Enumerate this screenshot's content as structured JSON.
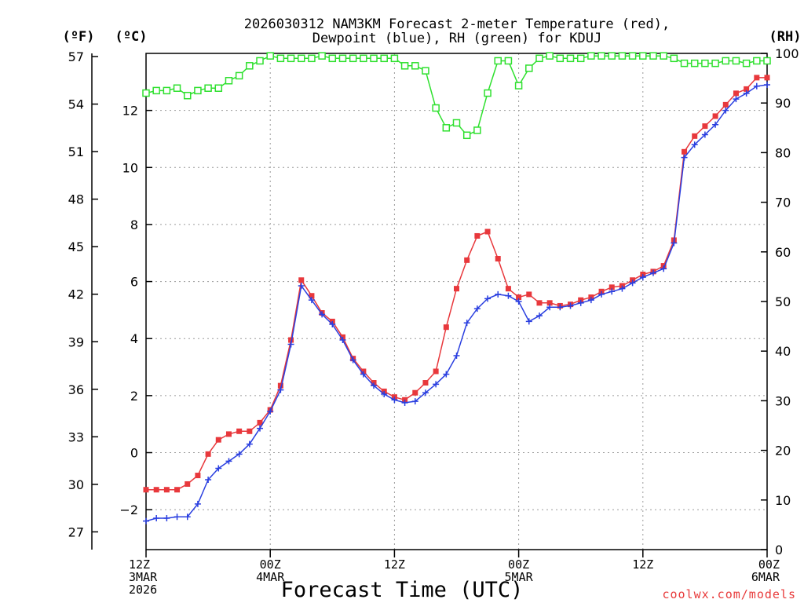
{
  "chart_data": {
    "type": "line",
    "title_line1": "2026030312 NAM3KM Forecast 2-meter Temperature (red),",
    "title_line2": "Dewpoint (blue), RH (green) for KDUJ",
    "unit_f": "(ºF)",
    "unit_c": "(ºC)",
    "unit_rh": "(RH)",
    "xlabel": "Forecast Time (UTC)",
    "credit": "coolwx.com/models",
    "x_range_hours": [
      0,
      60
    ],
    "x_ticks": [
      {
        "h": 0,
        "l1": "12Z",
        "l2": "3MAR",
        "l3": "2026"
      },
      {
        "h": 12,
        "l1": "00Z",
        "l2": "4MAR",
        "l3": ""
      },
      {
        "h": 24,
        "l1": "12Z",
        "l2": "",
        "l3": ""
      },
      {
        "h": 36,
        "l1": "00Z",
        "l2": "5MAR",
        "l3": ""
      },
      {
        "h": 48,
        "l1": "12Z",
        "l2": "",
        "l3": ""
      },
      {
        "h": 60,
        "l1": "00Z",
        "l2": "6MAR",
        "l3": ""
      }
    ],
    "c_axis": {
      "range": [
        -3.4,
        14.0
      ],
      "ticks": [
        -2,
        0,
        2,
        4,
        6,
        8,
        10,
        12
      ]
    },
    "f_axis": {
      "ticks": [
        27,
        30,
        33,
        36,
        39,
        42,
        45,
        48,
        51,
        54,
        57
      ]
    },
    "rh_axis": {
      "range": [
        0,
        100
      ],
      "ticks": [
        0,
        10,
        20,
        30,
        40,
        50,
        60,
        70,
        80,
        90,
        100
      ]
    },
    "colors": {
      "temperature": "#e8383c",
      "dewpoint": "#2a3fe0",
      "rh": "#2ee02e",
      "grid": "#9a9a9a"
    },
    "series": [
      {
        "name": "Temperature (°C)",
        "marker": "square",
        "values": [
          [
            0,
            -1.3
          ],
          [
            1,
            -1.3
          ],
          [
            2,
            -1.3
          ],
          [
            3,
            -1.3
          ],
          [
            4,
            -1.1
          ],
          [
            5,
            -0.8
          ],
          [
            6,
            -0.05
          ],
          [
            7,
            0.45
          ],
          [
            8,
            0.65
          ],
          [
            9,
            0.75
          ],
          [
            10,
            0.75
          ],
          [
            11,
            1.05
          ],
          [
            12,
            1.5
          ],
          [
            13,
            2.35
          ],
          [
            14,
            3.95
          ],
          [
            15,
            6.05
          ],
          [
            16,
            5.5
          ],
          [
            17,
            4.9
          ],
          [
            18,
            4.6
          ],
          [
            19,
            4.05
          ],
          [
            20,
            3.3
          ],
          [
            21,
            2.85
          ],
          [
            22,
            2.45
          ],
          [
            23,
            2.15
          ],
          [
            24,
            1.95
          ],
          [
            25,
            1.85
          ],
          [
            26,
            2.1
          ],
          [
            27,
            2.45
          ],
          [
            28,
            2.85
          ],
          [
            29,
            4.4
          ],
          [
            30,
            5.75
          ],
          [
            31,
            6.75
          ],
          [
            32,
            7.6
          ],
          [
            33,
            7.75
          ],
          [
            34,
            6.8
          ],
          [
            35,
            5.75
          ],
          [
            36,
            5.45
          ],
          [
            37,
            5.55
          ],
          [
            38,
            5.25
          ],
          [
            39,
            5.25
          ],
          [
            40,
            5.15
          ],
          [
            41,
            5.2
          ],
          [
            42,
            5.35
          ],
          [
            43,
            5.45
          ],
          [
            44,
            5.65
          ],
          [
            45,
            5.8
          ],
          [
            46,
            5.85
          ],
          [
            47,
            6.05
          ],
          [
            48,
            6.25
          ],
          [
            49,
            6.35
          ],
          [
            50,
            6.55
          ],
          [
            51,
            7.45
          ],
          [
            52,
            10.55
          ],
          [
            53,
            11.1
          ],
          [
            54,
            11.45
          ],
          [
            55,
            11.8
          ],
          [
            56,
            12.2
          ],
          [
            57,
            12.6
          ],
          [
            58,
            12.75
          ],
          [
            59,
            13.15
          ],
          [
            60,
            13.15
          ]
        ]
      },
      {
        "name": "Dewpoint (°C)",
        "marker": "plus",
        "values": [
          [
            0,
            -2.4
          ],
          [
            1,
            -2.3
          ],
          [
            2,
            -2.3
          ],
          [
            3,
            -2.25
          ],
          [
            4,
            -2.25
          ],
          [
            5,
            -1.8
          ],
          [
            6,
            -0.95
          ],
          [
            7,
            -0.55
          ],
          [
            8,
            -0.3
          ],
          [
            9,
            -0.05
          ],
          [
            10,
            0.3
          ],
          [
            11,
            0.85
          ],
          [
            12,
            1.45
          ],
          [
            13,
            2.2
          ],
          [
            14,
            3.8
          ],
          [
            15,
            5.85
          ],
          [
            16,
            5.35
          ],
          [
            17,
            4.85
          ],
          [
            18,
            4.5
          ],
          [
            19,
            3.95
          ],
          [
            20,
            3.25
          ],
          [
            21,
            2.75
          ],
          [
            22,
            2.35
          ],
          [
            23,
            2.05
          ],
          [
            24,
            1.85
          ],
          [
            25,
            1.75
          ],
          [
            26,
            1.8
          ],
          [
            27,
            2.1
          ],
          [
            28,
            2.4
          ],
          [
            29,
            2.75
          ],
          [
            30,
            3.4
          ],
          [
            31,
            4.55
          ],
          [
            32,
            5.05
          ],
          [
            33,
            5.4
          ],
          [
            34,
            5.55
          ],
          [
            35,
            5.5
          ],
          [
            36,
            5.3
          ],
          [
            37,
            4.6
          ],
          [
            38,
            4.8
          ],
          [
            39,
            5.1
          ],
          [
            40,
            5.1
          ],
          [
            41,
            5.15
          ],
          [
            42,
            5.25
          ],
          [
            43,
            5.35
          ],
          [
            44,
            5.55
          ],
          [
            45,
            5.65
          ],
          [
            46,
            5.75
          ],
          [
            47,
            5.95
          ],
          [
            48,
            6.15
          ],
          [
            49,
            6.3
          ],
          [
            50,
            6.45
          ],
          [
            51,
            7.35
          ],
          [
            52,
            10.35
          ],
          [
            53,
            10.8
          ],
          [
            54,
            11.15
          ],
          [
            55,
            11.5
          ],
          [
            56,
            12.0
          ],
          [
            57,
            12.4
          ],
          [
            58,
            12.6
          ],
          [
            59,
            12.85
          ],
          [
            60,
            12.9
          ]
        ]
      },
      {
        "name": "RH (%)",
        "marker": "open-square",
        "values": [
          [
            0,
            92
          ],
          [
            1,
            92.5
          ],
          [
            2,
            92.5
          ],
          [
            3,
            93
          ],
          [
            4,
            91.5
          ],
          [
            5,
            92.5
          ],
          [
            6,
            93
          ],
          [
            7,
            93
          ],
          [
            8,
            94.5
          ],
          [
            9,
            95.5
          ],
          [
            10,
            97.5
          ],
          [
            11,
            98.5
          ],
          [
            12,
            99.5
          ],
          [
            13,
            99
          ],
          [
            14,
            99
          ],
          [
            15,
            99
          ],
          [
            16,
            99
          ],
          [
            17,
            99.5
          ],
          [
            18,
            99
          ],
          [
            19,
            99
          ],
          [
            20,
            99
          ],
          [
            21,
            99
          ],
          [
            22,
            99
          ],
          [
            23,
            99
          ],
          [
            24,
            99
          ],
          [
            25,
            97.5
          ],
          [
            26,
            97.5
          ],
          [
            27,
            96.5
          ],
          [
            28,
            89
          ],
          [
            29,
            85
          ],
          [
            30,
            86
          ],
          [
            31,
            83.5
          ],
          [
            32,
            84.5
          ],
          [
            33,
            92
          ],
          [
            34,
            98.5
          ],
          [
            35,
            98.5
          ],
          [
            36,
            93.5
          ],
          [
            37,
            97
          ],
          [
            38,
            99
          ],
          [
            39,
            99.5
          ],
          [
            40,
            99
          ],
          [
            41,
            99
          ],
          [
            42,
            99
          ],
          [
            43,
            99.5
          ],
          [
            44,
            99.5
          ],
          [
            45,
            99.5
          ],
          [
            46,
            99.5
          ],
          [
            47,
            99.5
          ],
          [
            48,
            99.5
          ],
          [
            49,
            99.5
          ],
          [
            50,
            99.5
          ],
          [
            51,
            99
          ],
          [
            52,
            98
          ],
          [
            53,
            98
          ],
          [
            54,
            98
          ],
          [
            55,
            98
          ],
          [
            56,
            98.5
          ],
          [
            57,
            98.5
          ],
          [
            58,
            98
          ],
          [
            59,
            98.5
          ],
          [
            60,
            98.5
          ]
        ]
      }
    ]
  }
}
